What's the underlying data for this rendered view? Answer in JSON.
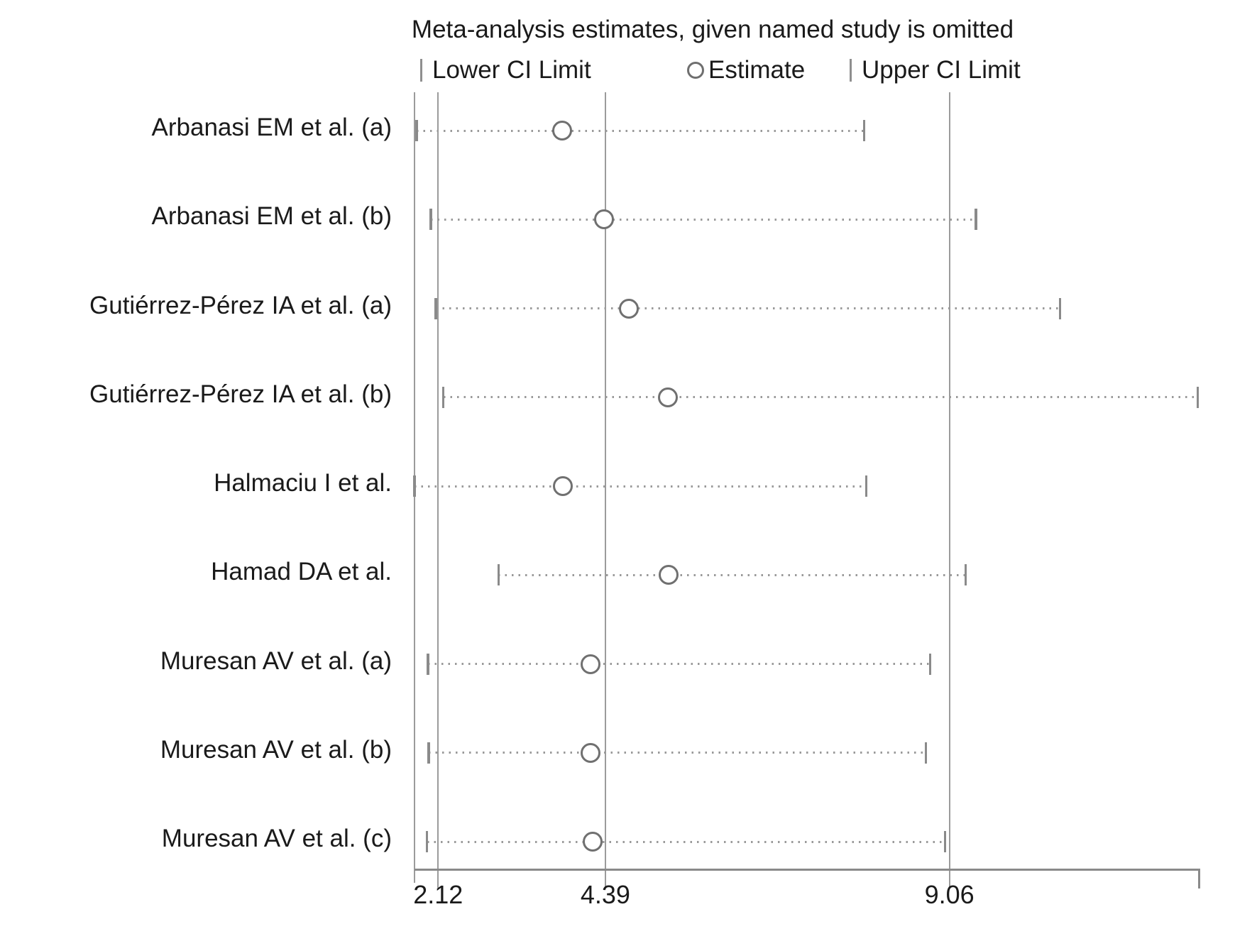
{
  "title": "Meta-analysis estimates, given named study is omitted",
  "legend": {
    "lower_label": "Lower CI Limit",
    "estimate_label": "Estimate",
    "upper_label": "Upper CI Limit"
  },
  "chart_data": {
    "type": "scatter",
    "subtype": "leave-one-out sensitivity (influence) forest plot",
    "title": "Meta-analysis estimates, given named study is omitted",
    "legend": [
      "Lower CI Limit",
      "Estimate",
      "Upper CI Limit"
    ],
    "grid": true,
    "legend_position": "top",
    "x_ticks": [
      2.12,
      4.39,
      9.06
    ],
    "x_tick_labels": [
      "2.12",
      "4.39",
      "9.06"
    ],
    "xlim": [
      1.8,
      12.45
    ],
    "overall": {
      "lower": 2.12,
      "estimate": 4.39,
      "upper": 9.06
    },
    "studies": [
      {
        "omitted": "Arbanasi EM et al. (a)",
        "lower": 1.83,
        "estimate": 3.8,
        "upper": 7.9
      },
      {
        "omitted": "Arbanasi EM et al. (b)",
        "lower": 2.02,
        "estimate": 4.37,
        "upper": 9.42
      },
      {
        "omitted": "Gutiérrez-Pérez IA et al. (a)",
        "lower": 2.09,
        "estimate": 4.71,
        "upper": 10.56
      },
      {
        "omitted": "Gutiérrez-Pérez IA et al. (b)",
        "lower": 2.19,
        "estimate": 5.24,
        "upper": 12.43
      },
      {
        "omitted": "Halmaciu I et al.",
        "lower": 1.8,
        "estimate": 3.81,
        "upper": 7.93
      },
      {
        "omitted": "Hamad DA et al.",
        "lower": 2.94,
        "estimate": 5.25,
        "upper": 9.28
      },
      {
        "omitted": "Muresan AV et al. (a)",
        "lower": 1.98,
        "estimate": 4.19,
        "upper": 8.8
      },
      {
        "omitted": "Muresan AV et al. (b)",
        "lower": 1.99,
        "estimate": 4.19,
        "upper": 8.74
      },
      {
        "omitted": "Muresan AV et al. (c)",
        "lower": 1.97,
        "estimate": 4.22,
        "upper": 9.0
      }
    ],
    "colors": {
      "reference_line": "#9b9b9b",
      "ci_dots": "#9a9a9a",
      "tick": "#8a8a8a",
      "circle_outline": "#707070",
      "text": "#1a1a1a",
      "background": "#ffffff"
    }
  }
}
